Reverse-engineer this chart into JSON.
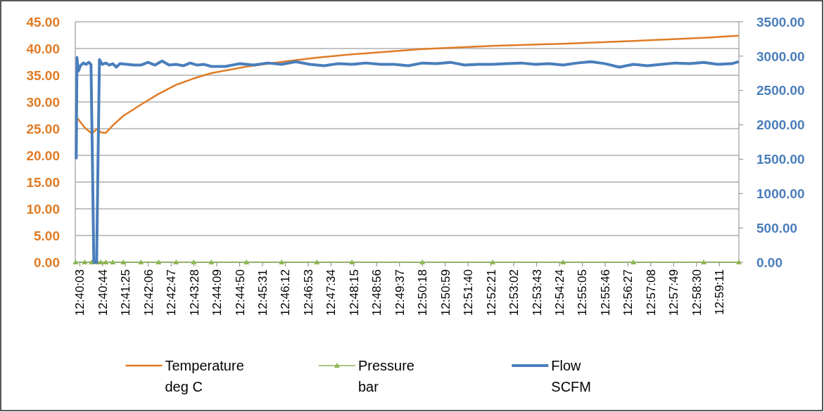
{
  "chart_data": {
    "type": "line",
    "xlim": [
      12.66528,
      12.99611
    ],
    "xticks": [
      {
        "value": 12.6675,
        "label": "12:40:03"
      },
      {
        "value": 12.67889,
        "label": "12:40:44"
      },
      {
        "value": 12.69028,
        "label": "12:41:25"
      },
      {
        "value": 12.70167,
        "label": "12:42:06"
      },
      {
        "value": 12.71306,
        "label": "12:42:47"
      },
      {
        "value": 12.72444,
        "label": "12:43:28"
      },
      {
        "value": 12.73583,
        "label": "12:44:09"
      },
      {
        "value": 12.74722,
        "label": "12:44:50"
      },
      {
        "value": 12.75861,
        "label": "12:45:31"
      },
      {
        "value": 12.77,
        "label": "12:46:12"
      },
      {
        "value": 12.78139,
        "label": "12:46:53"
      },
      {
        "value": 12.79278,
        "label": "12:47:34"
      },
      {
        "value": 12.80417,
        "label": "12:48:15"
      },
      {
        "value": 12.81556,
        "label": "12:48:56"
      },
      {
        "value": 12.82694,
        "label": "12:49:37"
      },
      {
        "value": 12.83833,
        "label": "12:50:18"
      },
      {
        "value": 12.84972,
        "label": "12:50:59"
      },
      {
        "value": 12.86111,
        "label": "12:51:40"
      },
      {
        "value": 12.8725,
        "label": "12:52:21"
      },
      {
        "value": 12.88389,
        "label": "12:53:02"
      },
      {
        "value": 12.89528,
        "label": "12:53:43"
      },
      {
        "value": 12.90667,
        "label": "12:54:24"
      },
      {
        "value": 12.91806,
        "label": "12:55:05"
      },
      {
        "value": 12.92944,
        "label": "12:55:46"
      },
      {
        "value": 12.94083,
        "label": "12:56:27"
      },
      {
        "value": 12.95222,
        "label": "12:57:08"
      },
      {
        "value": 12.96361,
        "label": "12:57:49"
      },
      {
        "value": 12.975,
        "label": "12:58:30"
      },
      {
        "value": 12.98639,
        "label": "12:59:11"
      }
    ],
    "ylim": [
      0,
      45
    ],
    "yticks": [
      {
        "value": 0,
        "label": "0.00"
      },
      {
        "value": 5,
        "label": "5.00"
      },
      {
        "value": 10,
        "label": "10.00"
      },
      {
        "value": 15,
        "label": "15.00"
      },
      {
        "value": 20,
        "label": "20.00"
      },
      {
        "value": 25,
        "label": "25.00"
      },
      {
        "value": 30,
        "label": "30.00"
      },
      {
        "value": 35,
        "label": "35.00"
      },
      {
        "value": 40,
        "label": "40.00"
      },
      {
        "value": 45,
        "label": "45.00"
      }
    ],
    "y2lim": [
      0,
      3500
    ],
    "y2ticks": [
      {
        "value": 0,
        "label": "0.00"
      },
      {
        "value": 500,
        "label": "500.00"
      },
      {
        "value": 1000,
        "label": "1000.00"
      },
      {
        "value": 1500,
        "label": "1500.00"
      },
      {
        "value": 2000,
        "label": "2000.00"
      },
      {
        "value": 2500,
        "label": "2500.00"
      },
      {
        "value": 3000,
        "label": "3000.00"
      },
      {
        "value": 3500,
        "label": "3500.00"
      }
    ],
    "grid": "y",
    "legend": "bottom",
    "series": [
      {
        "name": "Temperature deg C",
        "color": "#e07b25",
        "x": [
          12.6654,
          12.66996,
          12.67346,
          12.67627,
          12.67802,
          12.68048,
          12.68398,
          12.68924,
          12.69801,
          12.70678,
          12.71555,
          12.72432,
          12.73309,
          12.75063,
          12.76816,
          12.7857,
          12.80323,
          12.8383,
          12.87338,
          12.90845,
          12.94352,
          12.97859,
          12.99611
        ],
        "values": [
          27.4,
          25.2,
          24.1,
          25.0,
          24.3,
          24.2,
          25.6,
          27.4,
          29.5,
          31.5,
          33.2,
          34.4,
          35.4,
          36.6,
          37.5,
          38.3,
          38.9,
          39.9,
          40.5,
          40.9,
          41.4,
          42.0,
          42.4
        ]
      },
      {
        "name": "Pressure bar",
        "color": "#8db554",
        "marker": "triangle",
        "x": [
          12.6654,
          12.66996,
          12.67346,
          12.67627,
          12.67802,
          12.68048,
          12.68398,
          12.68924,
          12.69801,
          12.70678,
          12.71555,
          12.72432,
          12.73309,
          12.75063,
          12.76816,
          12.7857,
          12.80323,
          12.8383,
          12.87338,
          12.90845,
          12.94352,
          12.97859,
          12.99611
        ],
        "values": [
          0,
          0,
          0,
          0,
          0,
          0,
          0,
          0,
          0,
          0,
          0,
          0,
          0,
          0,
          0,
          0,
          0,
          0,
          0,
          0,
          0,
          0,
          0
        ]
      },
      {
        "name": "Flow SCFM",
        "color": "#4a7ebb",
        "axis": "y2",
        "x": [
          12.66575,
          12.6661,
          12.6668,
          12.66785,
          12.66925,
          12.67066,
          12.67206,
          12.67311,
          12.67381,
          12.67451,
          12.67592,
          12.67662,
          12.67732,
          12.67872,
          12.68048,
          12.68223,
          12.68398,
          12.68574,
          12.68749,
          12.691,
          12.69451,
          12.69801,
          12.70152,
          12.70503,
          12.70853,
          12.71204,
          12.71555,
          12.71906,
          12.72256,
          12.72607,
          12.72958,
          12.73309,
          12.7401,
          12.74712,
          12.75413,
          12.76115,
          12.76816,
          12.77517,
          12.78219,
          12.7892,
          12.79622,
          12.80323,
          12.81025,
          12.81726,
          12.82428,
          12.83129,
          12.8383,
          12.84532,
          12.85233,
          12.85935,
          12.86636,
          12.87338,
          12.88039,
          12.8874,
          12.89442,
          12.90143,
          12.90845,
          12.91546,
          12.92248,
          12.92949,
          12.93651,
          12.94352,
          12.95053,
          12.95755,
          12.96456,
          12.97158,
          12.97859,
          12.98561,
          12.99262,
          12.99611
        ],
        "values": [
          1500,
          2980,
          2780,
          2860,
          2900,
          2880,
          2910,
          2880,
          1500,
          0,
          0,
          1500,
          2950,
          2880,
          2900,
          2870,
          2890,
          2840,
          2890,
          2880,
          2870,
          2870,
          2910,
          2870,
          2930,
          2870,
          2880,
          2860,
          2900,
          2870,
          2880,
          2850,
          2850,
          2890,
          2870,
          2900,
          2880,
          2920,
          2880,
          2860,
          2890,
          2880,
          2900,
          2880,
          2880,
          2860,
          2900,
          2890,
          2910,
          2870,
          2880,
          2880,
          2890,
          2900,
          2880,
          2890,
          2870,
          2900,
          2920,
          2890,
          2840,
          2880,
          2860,
          2880,
          2900,
          2890,
          2910,
          2880,
          2890,
          2920
        ]
      }
    ]
  }
}
